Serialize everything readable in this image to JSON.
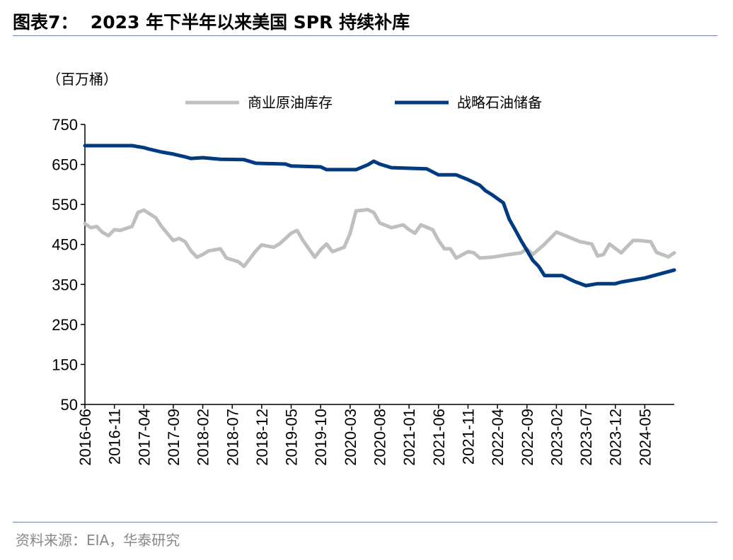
{
  "title": "图表7：  2023 年下半年以来美国 SPR 持续补库",
  "source": "资料来源：EIA，华泰研究",
  "chart_data": {
    "type": "line",
    "title": "图表7：  2023 年下半年以来美国 SPR 持续补库",
    "ylabel": "（百万桶）",
    "xlabel": "",
    "ylim": [
      50,
      750
    ],
    "yticks": [
      "50",
      "150",
      "250",
      "350",
      "450",
      "550",
      "650",
      "750"
    ],
    "xlim": [
      "2016-06",
      "2024-10"
    ],
    "xticks": [
      "2016-06",
      "2016-11",
      "2017-04",
      "2017-09",
      "2018-02",
      "2018-07",
      "2018-12",
      "2019-05",
      "2019-10",
      "2020-03",
      "2020-08",
      "2021-01",
      "2021-06",
      "2021-11",
      "2022-04",
      "2022-09",
      "2023-02",
      "2023-07",
      "2023-12",
      "2024-05"
    ],
    "grid": false,
    "legend": "top",
    "series": [
      {
        "name": "商业原油库存",
        "color": "#bfbfbf",
        "points": [
          [
            "2016-06",
            502
          ],
          [
            "2016-07",
            492
          ],
          [
            "2016-08",
            495
          ],
          [
            "2016-09",
            480
          ],
          [
            "2016-10",
            472
          ],
          [
            "2016-11",
            487
          ],
          [
            "2016-12",
            485
          ],
          [
            "2017-02",
            495
          ],
          [
            "2017-03",
            530
          ],
          [
            "2017-04",
            536
          ],
          [
            "2017-06",
            517
          ],
          [
            "2017-07",
            495
          ],
          [
            "2017-09",
            460
          ],
          [
            "2017-10",
            465
          ],
          [
            "2017-11",
            457
          ],
          [
            "2017-12",
            434
          ],
          [
            "2018-01",
            418
          ],
          [
            "2018-02",
            425
          ],
          [
            "2018-03",
            434
          ],
          [
            "2018-05",
            439
          ],
          [
            "2018-06",
            416
          ],
          [
            "2018-08",
            407
          ],
          [
            "2018-09",
            395
          ],
          [
            "2018-11",
            434
          ],
          [
            "2018-12",
            449
          ],
          [
            "2019-02",
            443
          ],
          [
            "2019-03",
            451
          ],
          [
            "2019-05",
            478
          ],
          [
            "2019-06",
            485
          ],
          [
            "2019-07",
            460
          ],
          [
            "2019-09",
            418
          ],
          [
            "2019-10",
            437
          ],
          [
            "2019-11",
            451
          ],
          [
            "2019-12",
            432
          ],
          [
            "2020-02",
            443
          ],
          [
            "2020-03",
            478
          ],
          [
            "2020-04",
            534
          ],
          [
            "2020-06",
            537
          ],
          [
            "2020-07",
            530
          ],
          [
            "2020-08",
            504
          ],
          [
            "2020-10",
            492
          ],
          [
            "2020-12",
            499
          ],
          [
            "2021-01",
            487
          ],
          [
            "2021-02",
            478
          ],
          [
            "2021-03",
            499
          ],
          [
            "2021-05",
            487
          ],
          [
            "2021-06",
            460
          ],
          [
            "2021-07",
            439
          ],
          [
            "2021-08",
            439
          ],
          [
            "2021-09",
            416
          ],
          [
            "2021-11",
            432
          ],
          [
            "2021-12",
            429
          ],
          [
            "2022-01",
            416
          ],
          [
            "2022-03",
            418
          ],
          [
            "2022-06",
            425
          ],
          [
            "2022-08",
            429
          ],
          [
            "2022-09",
            439
          ],
          [
            "2022-10",
            425
          ],
          [
            "2022-12",
            451
          ],
          [
            "2023-02",
            481
          ],
          [
            "2023-04",
            469
          ],
          [
            "2023-06",
            457
          ],
          [
            "2023-08",
            451
          ],
          [
            "2023-09",
            421
          ],
          [
            "2023-10",
            425
          ],
          [
            "2023-11",
            451
          ],
          [
            "2024-01",
            429
          ],
          [
            "2024-03",
            460
          ],
          [
            "2024-04",
            460
          ],
          [
            "2024-06",
            457
          ],
          [
            "2024-07",
            430
          ],
          [
            "2024-09",
            419
          ],
          [
            "2024-10",
            429
          ]
        ]
      },
      {
        "name": "战略石油储备",
        "color": "#003a80",
        "points": [
          [
            "2016-06",
            697
          ],
          [
            "2017-02",
            697
          ],
          [
            "2017-04",
            692
          ],
          [
            "2017-05",
            688
          ],
          [
            "2017-07",
            681
          ],
          [
            "2017-09",
            676
          ],
          [
            "2017-11",
            669
          ],
          [
            "2017-12",
            665
          ],
          [
            "2018-02",
            667
          ],
          [
            "2018-05",
            663
          ],
          [
            "2018-09",
            662
          ],
          [
            "2018-11",
            653
          ],
          [
            "2019-04",
            651
          ],
          [
            "2019-05",
            646
          ],
          [
            "2019-10",
            644
          ],
          [
            "2019-11",
            637
          ],
          [
            "2020-04",
            637
          ],
          [
            "2020-06",
            649
          ],
          [
            "2020-07",
            658
          ],
          [
            "2020-08",
            651
          ],
          [
            "2020-10",
            642
          ],
          [
            "2021-02",
            640
          ],
          [
            "2021-04",
            639
          ],
          [
            "2021-06",
            624
          ],
          [
            "2021-09",
            624
          ],
          [
            "2021-11",
            612
          ],
          [
            "2022-01",
            598
          ],
          [
            "2022-02",
            584
          ],
          [
            "2022-03",
            575
          ],
          [
            "2022-05",
            554
          ],
          [
            "2022-06",
            513
          ],
          [
            "2022-07",
            487
          ],
          [
            "2022-08",
            460
          ],
          [
            "2022-09",
            435
          ],
          [
            "2022-10",
            410
          ],
          [
            "2022-11",
            395
          ],
          [
            "2022-12",
            372
          ],
          [
            "2023-03",
            372
          ],
          [
            "2023-05",
            358
          ],
          [
            "2023-07",
            347
          ],
          [
            "2023-09",
            352
          ],
          [
            "2023-12",
            352
          ],
          [
            "2024-01",
            356
          ],
          [
            "2024-05",
            366
          ],
          [
            "2024-10",
            386
          ]
        ]
      }
    ]
  }
}
